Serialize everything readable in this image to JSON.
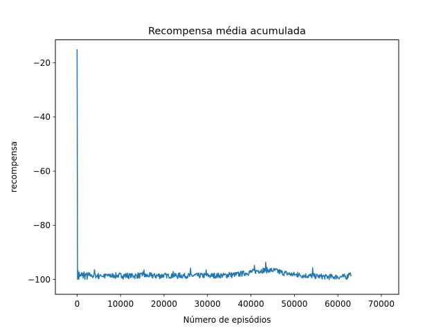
{
  "chart_data": {
    "type": "line",
    "title": "Recompensa média acumulada",
    "xlabel": "Número de episódios",
    "ylabel": "recompensa",
    "xlim": [
      -5000,
      74000
    ],
    "ylim": [
      -105.5,
      -11.5
    ],
    "xticks": [
      0,
      10000,
      20000,
      30000,
      40000,
      50000,
      60000,
      70000
    ],
    "xtick_labels": [
      "0",
      "10000",
      "20000",
      "30000",
      "40000",
      "50000",
      "60000",
      "70000"
    ],
    "yticks": [
      -20,
      -40,
      -60,
      -80,
      -100
    ],
    "ytick_labels": [
      "−20",
      "−40",
      "−60",
      "−80",
      "−100"
    ],
    "grid": false,
    "series": [
      {
        "name": "recompensa",
        "color": "#1f77b4",
        "x_start": 0,
        "x_step": 100,
        "noise_amplitude": 1.0,
        "values": [
          -15,
          -99,
          -97.5,
          -98.6,
          -99.4,
          -97.8,
          -99,
          -98.2,
          -98.8,
          -99.2,
          -97.6,
          -98.7,
          -98.9,
          -98.3,
          -99,
          -98.1,
          -97.6,
          -98.9,
          -99.1,
          -98.4,
          -98.3,
          -98.9,
          -98.2,
          -99.2,
          -98.5,
          -98.6,
          -97.9,
          -98.8,
          -98.7,
          -98.4,
          -99.1,
          -98.6,
          -98.3,
          -98.9,
          -98.6,
          -98.2,
          -99,
          -98.6,
          -98.5,
          -98.8,
          -96.5,
          -98.3,
          -98.9,
          -98.6,
          -98.4,
          -99,
          -98.6,
          -98.1,
          -98.8,
          -98.6,
          -98.9,
          -98.5,
          -98.3,
          -98.7,
          -99.1,
          -98.6,
          -98.2,
          -98.8,
          -98.5,
          -98.7,
          -98.6,
          -98.8,
          -98.1,
          -98.5,
          -99,
          -98.7,
          -98.3,
          -98.9,
          -98.6,
          -98.4,
          -98.8,
          -98.7,
          -98.5,
          -98.9,
          -98.4,
          -98.6,
          -98.6,
          -98.3,
          -98.8,
          -98.5,
          -98.9,
          -98.4,
          -98.7,
          -98.6,
          -98.9,
          -98.3,
          -98.4,
          -98.8,
          -98.8,
          -98.5,
          -98.6,
          -98.7,
          -98.4,
          -98.9,
          -98.6,
          -98.5,
          -98.8,
          -98.8,
          -98.4,
          -98.7,
          -98.6,
          -98.6,
          -98.9,
          -98.5,
          -98.3,
          -98.7,
          -98.9,
          -98.4,
          -98.6,
          -98.8,
          -98.7,
          -98.3,
          -98.8,
          -98.6,
          -98.5,
          -98.9,
          -98.5,
          -98.7,
          -98.6,
          -98.8,
          -98.7,
          -98.6,
          -98.8,
          -98.4,
          -98.7,
          -98.5,
          -98.8,
          -98.3,
          -98.6,
          -98.9,
          -98.5,
          -98.4,
          -98.8,
          -98.8,
          -98.5,
          -98.7,
          -98.7,
          -98.5,
          -98.6,
          -98.8,
          -98.4,
          -98.7,
          -98.9,
          -98.5,
          -98.6,
          -98.7,
          -98.6,
          -98.6,
          -98.8,
          -98.4,
          -98.6,
          -96.8,
          -98.7,
          -98.6,
          -96.3,
          -98.5,
          -98.8,
          -98.7,
          -98.4,
          -98.8,
          -98.5,
          -98.6,
          -98.6,
          -98.9,
          -98.7,
          -98.5,
          -98.7,
          -98.6,
          -98.4,
          -98.9,
          -98.8,
          -98.5,
          -98.6,
          -98.5,
          -98.8,
          -98.5,
          -98.4,
          -98.9,
          -98.7,
          -98.6,
          -98.7,
          -98.6,
          -98.8,
          -98.5,
          -98.6,
          -98.6,
          -98.7,
          -98.5,
          -98.7,
          -98.5,
          -98.8,
          -98.6,
          -98.5,
          -98.9,
          -98.6,
          -98.6,
          -98.7,
          -98.5,
          -98.7,
          -98.4,
          -98.8,
          -98.6,
          -98.7,
          -98.5,
          -98.6,
          -98.9,
          -98.5,
          -98.7,
          -98.6,
          -98.6,
          -98.8,
          -98.4,
          -98.7,
          -98.7,
          -98.5,
          -98.6,
          -98.6,
          -98.5,
          -98.8,
          -98.7,
          -98.6,
          -96.5,
          -98.6,
          -98.6,
          -98.5,
          -98.7,
          -98.6,
          -98.4,
          -98.5,
          -98.7,
          -98.7,
          -98.8,
          -98.6,
          -98.5,
          -98.7,
          -98.6,
          -98.4,
          -98.8,
          -98.6,
          -98.7,
          -98.5,
          -98.6,
          -98.7,
          -98.6,
          -98.5,
          -98.8,
          -98.6,
          -98.7,
          -98.5,
          -98.6,
          -98.6,
          -98.7,
          -98.5,
          -98.7,
          -98.6,
          -98.6,
          -98.7,
          -98.4,
          -98.6,
          -98.8,
          -98.5,
          -96.8,
          -98.6,
          -98.7,
          -98.5,
          -98.6,
          -98.6,
          -98.8,
          -98.5,
          -98.7,
          -98.6,
          -98.5,
          -98.7,
          -98.6,
          -98.5,
          -98.6,
          -98.8,
          -98.6,
          -98.6,
          -98.5,
          -98.7,
          -98.6,
          -98.6,
          -98.7,
          -98.5,
          -98.6,
          -98.6,
          -98.7,
          -98.6,
          -98.5,
          -98.7,
          -98.6,
          -98.6,
          -98.5,
          -98.7,
          -98.6,
          -98.5,
          -96.6,
          -98.6,
          -98.7,
          -98.5,
          -98.6,
          -98.6,
          -98.7,
          -98.5,
          -98.6,
          -98.7,
          -98.6,
          -98.4,
          -98.6,
          -98.7,
          -98.6,
          -98.5,
          -98.6,
          -98.7,
          -98.6,
          -98.5,
          -98.6,
          -98.6,
          -98.7,
          -98.5,
          -98.6,
          -98.6,
          -98.5,
          -98.7,
          -98.6,
          -98.6,
          -98.5,
          -98.6,
          -98.7,
          -98.5,
          -98.5,
          -98.6,
          -98.6,
          -98.5,
          -98.4,
          -98.6,
          -98.6,
          -98.5,
          -98.6,
          -98.6,
          -98.4,
          -98.5,
          -98.4,
          -98.6,
          -98.5,
          -98.4,
          -98.5,
          -98.3,
          -98.5,
          -96.8,
          -98.4,
          -98.3,
          -98.5,
          -98.4,
          -98.3,
          -98.5,
          -98.4,
          -98.3,
          -98.2,
          -98.4,
          -98.3,
          -98.2,
          -98.4,
          -98.3,
          -98.1,
          -98.3,
          -98.2,
          -98.1,
          -98.2,
          -98.1,
          -98.0,
          -98.2,
          -98.1,
          -97.9,
          -98.1,
          -98.0,
          -97.9,
          -96.2,
          -98.0,
          -97.9,
          -97.8,
          -97.9,
          -97.8,
          -97.7,
          -97.9,
          -97.7,
          -97.6,
          -97.8,
          -97.6,
          -97.5,
          -97.7,
          -97.5,
          -97.4,
          -97.6,
          -97.4,
          -97.3,
          -97.5,
          -97.3,
          -97.2,
          -97.4,
          -97.2,
          -97.1,
          -97.3,
          -97.2,
          -97.0,
          -97.2,
          -97.1,
          -95.0,
          -97.1,
          -97.0,
          -96.9,
          -97.1,
          -96.9,
          -96.8,
          -97.0,
          -96.8,
          -96.7,
          -96.9,
          -96.7,
          -96.8,
          -96.6,
          -96.7,
          -96.8,
          -96.6,
          -96.7,
          -96.8,
          -96.6,
          -96.5,
          -96.7,
          -96.6,
          -96.5,
          -96.7,
          -96.6,
          -94.5,
          -96.6,
          -96.7,
          -96.5,
          -96.6,
          -96.7,
          -96.6,
          -96.5,
          -96.7,
          -96.6,
          -96.8,
          -96.6,
          -96.7,
          -96.5,
          -96.6,
          -96.8,
          -96.7,
          -96.6,
          -96.8,
          -96.7,
          -96.6,
          -96.8,
          -96.8,
          -96.7,
          -96.9,
          -96.8,
          -97.0,
          -96.9,
          -97.1,
          -97.0,
          -97.2,
          -97.1,
          -97.3,
          -97.2,
          -97.4,
          -97.3,
          -97.5,
          -97.4,
          -97.6,
          -97.5,
          -97.6,
          -97.5,
          -97.7,
          -97.6,
          -97.7,
          -97.8,
          -97.7,
          -97.8,
          -97.9,
          -97.8,
          -97.9,
          -97.8,
          -98.0,
          -97.9,
          -98.0,
          -97.9,
          -98.1,
          -98.0,
          -98.1,
          -98.0,
          -98.2,
          -98.1,
          -98.2,
          -98.1,
          -98.3,
          -98.2,
          -98.3,
          -98.2,
          -98.4,
          -98.3,
          -98.3,
          -98.4,
          -98.3,
          -96.8,
          -98.4,
          -98.3,
          -98.5,
          -98.4,
          -98.4,
          -98.5,
          -98.4,
          -98.5,
          -98.4,
          -98.6,
          -98.5,
          -98.5,
          -98.6,
          -98.5,
          -98.6,
          -98.5,
          -98.7,
          -98.6,
          -98.6,
          -98.7,
          -98.6,
          -98.6,
          -98.7,
          -98.6,
          -98.7,
          -98.6,
          -98.8,
          -98.7,
          -98.7,
          -98.8,
          -98.7,
          -98.8,
          -98.7,
          -98.8,
          -96.2,
          -98.7,
          -98.8,
          -98.8,
          -98.7,
          -98.9,
          -98.8,
          -98.8,
          -98.9,
          -98.8,
          -98.9,
          -98.8,
          -98.9,
          -98.8,
          -99.0,
          -98.9,
          -98.9,
          -99.0,
          -98.9,
          -99.0,
          -98.9,
          -99.0,
          -98.9,
          -99.0,
          -98.9,
          -99.0,
          -98.9,
          -99.1,
          -99.0,
          -99.0,
          -99.1,
          -99.0,
          -99.1,
          -99.0,
          -99.1,
          -99.0,
          -99.1,
          -99.0,
          -99.1,
          -99.0,
          -99.1,
          -99.0,
          -99.1,
          -99.0,
          -99.1,
          -99.0,
          -99.1,
          -99.0,
          -99.1,
          -99.0,
          -99.1,
          -99.0,
          -99.1,
          -99.0,
          -99.1,
          -99.0,
          -99.1,
          -99.0,
          -99.1,
          -99.0,
          -99.1,
          -99.0,
          -99.1,
          -99.0,
          -99.1,
          -99.0,
          -99.1,
          -99.0,
          -99.1,
          -99.0,
          -99.1,
          -99.0,
          -99.1,
          -99.0,
          -99.1,
          -99.0,
          -99.1,
          -99.0,
          -99.1,
          -99.0,
          -98.9,
          -98.7,
          -98.4,
          -98.1,
          -97.8,
          -97.5,
          -96.9,
          -98.2,
          -98.5
        ]
      }
    ]
  }
}
